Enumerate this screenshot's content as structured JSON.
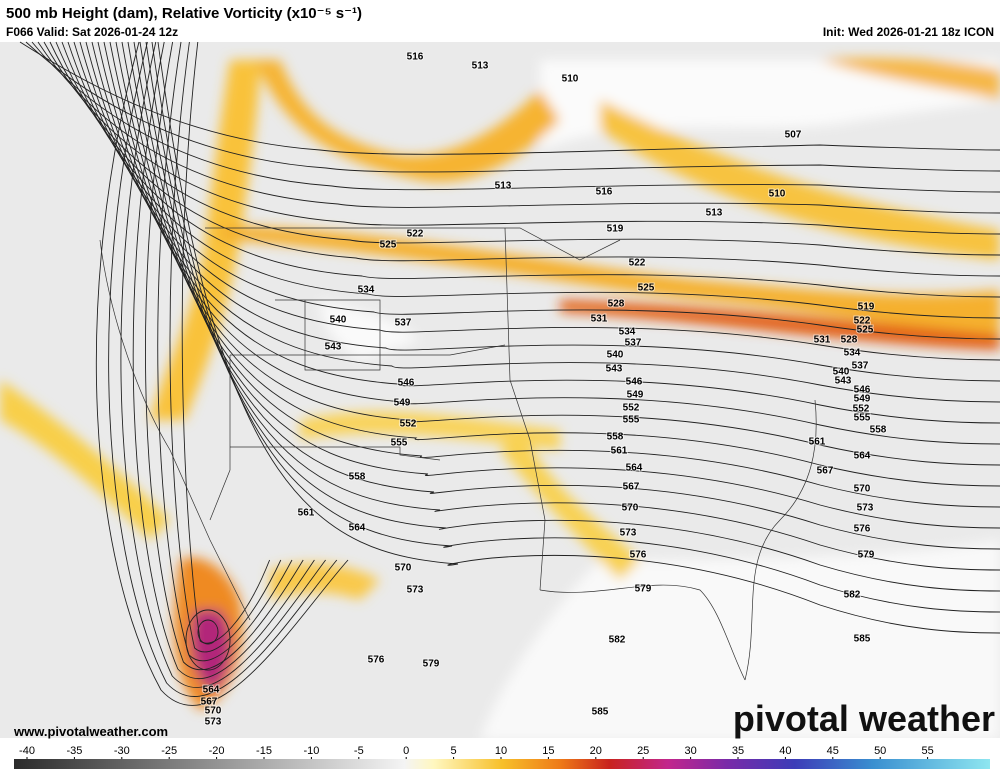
{
  "header": {
    "title": "500 mb Height (dam), Relative Vorticity (x10⁻⁵ s⁻¹)",
    "subtitle": "F066 Valid: Sat 2026-01-24 12z",
    "init": "Init: Wed 2026-01-21 18z ICON"
  },
  "contour_labels": [
    "516",
    "513",
    "510",
    "507",
    "513",
    "516",
    "510",
    "513",
    "519",
    "522",
    "525",
    "522",
    "525",
    "534",
    "528",
    "519",
    "540",
    "537",
    "531",
    "522",
    "525",
    "534",
    "537",
    "528",
    "531",
    "543",
    "534",
    "540",
    "537",
    "543",
    "540",
    "543",
    "546",
    "546",
    "546",
    "549",
    "549",
    "549",
    "552",
    "552",
    "552",
    "555",
    "555",
    "558",
    "558",
    "555",
    "561",
    "561",
    "564",
    "564",
    "567",
    "558",
    "567",
    "570",
    "573",
    "561",
    "570",
    "564",
    "576",
    "573",
    "579",
    "576",
    "570",
    "573",
    "579",
    "582",
    "582",
    "585",
    "576",
    "579",
    "564",
    "567",
    "570",
    "573",
    "585"
  ],
  "colorbar": {
    "ticks": [
      -40,
      -35,
      -30,
      -25,
      -20,
      -15,
      -10,
      -5,
      0,
      5,
      10,
      15,
      20,
      25,
      30,
      35,
      40,
      45,
      50,
      55
    ]
  },
  "footer": {
    "website": "www.pivotalweather.com",
    "logo": "pivotal weather"
  }
}
